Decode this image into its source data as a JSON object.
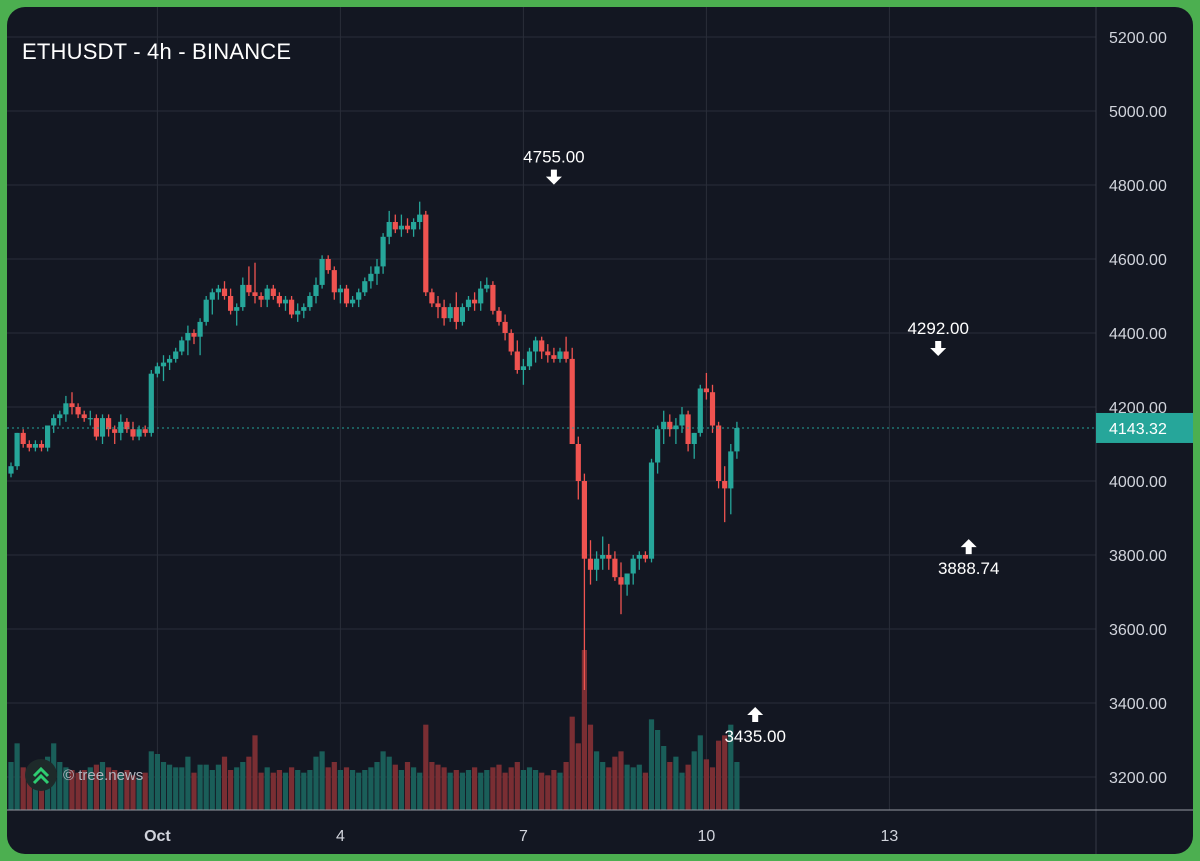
{
  "chart_data": {
    "type": "candlestick",
    "title": "ETHUSDT - 4h - BINANCE",
    "interval": "4h",
    "exchange": "BINANCE",
    "symbol": "ETHUSDT",
    "y_ticks": [
      "5200.00",
      "5000.00",
      "4800.00",
      "4600.00",
      "4400.00",
      "4200.00",
      "4000.00",
      "3800.00",
      "3600.00",
      "3400.00",
      "3200.00"
    ],
    "ylim": [
      3115,
      5245
    ],
    "x_ticks": [
      {
        "label": "Oct",
        "index": 24,
        "bold": true
      },
      {
        "label": "4",
        "index": 54
      },
      {
        "label": "7",
        "index": 84
      },
      {
        "label": "10",
        "index": 114
      },
      {
        "label": "13",
        "index": 144
      }
    ],
    "current_price": "4143.32",
    "annotations": [
      {
        "label": "4755.00",
        "value": 4755,
        "index": 89,
        "position": "above"
      },
      {
        "label": "3435.00",
        "value": 3435,
        "index": 122,
        "position": "below"
      },
      {
        "label": "4292.00",
        "value": 4292,
        "index": 152,
        "position": "above"
      },
      {
        "label": "3888.74",
        "value": 3888.74,
        "index": 157,
        "position": "below"
      }
    ],
    "candles": [
      [
        4020,
        4050,
        4010,
        4040,
        18
      ],
      [
        4040,
        4130,
        4030,
        4130,
        25
      ],
      [
        4130,
        4140,
        4090,
        4100,
        16
      ],
      [
        4100,
        4110,
        4080,
        4090,
        14
      ],
      [
        4090,
        4110,
        4080,
        4100,
        15
      ],
      [
        4100,
        4110,
        4080,
        4090,
        12
      ],
      [
        4090,
        4150,
        4080,
        4150,
        20
      ],
      [
        4150,
        4180,
        4130,
        4170,
        25
      ],
      [
        4170,
        4190,
        4150,
        4180,
        18
      ],
      [
        4180,
        4230,
        4160,
        4210,
        16
      ],
      [
        4210,
        4240,
        4180,
        4200,
        15
      ],
      [
        4200,
        4210,
        4170,
        4180,
        14
      ],
      [
        4180,
        4190,
        4160,
        4170,
        15
      ],
      [
        4170,
        4190,
        4150,
        4170,
        16
      ],
      [
        4170,
        4180,
        4110,
        4120,
        17
      ],
      [
        4120,
        4180,
        4100,
        4170,
        18
      ],
      [
        4170,
        4180,
        4120,
        4140,
        16
      ],
      [
        4140,
        4150,
        4100,
        4130,
        15
      ],
      [
        4130,
        4180,
        4110,
        4160,
        14
      ],
      [
        4160,
        4170,
        4130,
        4140,
        15
      ],
      [
        4140,
        4160,
        4110,
        4120,
        13
      ],
      [
        4120,
        4150,
        4110,
        4140,
        12
      ],
      [
        4140,
        4150,
        4120,
        4130,
        14
      ],
      [
        4130,
        4300,
        4120,
        4290,
        22
      ],
      [
        4290,
        4320,
        4280,
        4310,
        21
      ],
      [
        4310,
        4340,
        4270,
        4320,
        18
      ],
      [
        4320,
        4340,
        4300,
        4330,
        17
      ],
      [
        4330,
        4360,
        4320,
        4350,
        16
      ],
      [
        4350,
        4390,
        4340,
        4380,
        16
      ],
      [
        4380,
        4420,
        4340,
        4400,
        20
      ],
      [
        4400,
        4410,
        4370,
        4390,
        14
      ],
      [
        4390,
        4440,
        4340,
        4430,
        17
      ],
      [
        4430,
        4500,
        4420,
        4490,
        17
      ],
      [
        4490,
        4520,
        4450,
        4510,
        15
      ],
      [
        4510,
        4530,
        4490,
        4520,
        17
      ],
      [
        4520,
        4540,
        4490,
        4500,
        20
      ],
      [
        4500,
        4520,
        4450,
        4460,
        15
      ],
      [
        4460,
        4480,
        4420,
        4470,
        16
      ],
      [
        4470,
        4550,
        4460,
        4530,
        18
      ],
      [
        4530,
        4580,
        4500,
        4510,
        20
      ],
      [
        4510,
        4590,
        4480,
        4500,
        28
      ],
      [
        4500,
        4510,
        4470,
        4490,
        14
      ],
      [
        4490,
        4530,
        4470,
        4520,
        16
      ],
      [
        4520,
        4530,
        4490,
        4500,
        14
      ],
      [
        4500,
        4510,
        4470,
        4480,
        15
      ],
      [
        4480,
        4500,
        4460,
        4490,
        14
      ],
      [
        4490,
        4500,
        4440,
        4450,
        16
      ],
      [
        4450,
        4480,
        4430,
        4460,
        15
      ],
      [
        4460,
        4480,
        4440,
        4470,
        14
      ],
      [
        4470,
        4510,
        4460,
        4500,
        15
      ],
      [
        4500,
        4550,
        4480,
        4530,
        20
      ],
      [
        4530,
        4610,
        4520,
        4600,
        22
      ],
      [
        4600,
        4610,
        4560,
        4570,
        16
      ],
      [
        4570,
        4580,
        4490,
        4510,
        18
      ],
      [
        4510,
        4530,
        4480,
        4520,
        15
      ],
      [
        4520,
        4530,
        4470,
        4480,
        16
      ],
      [
        4480,
        4500,
        4470,
        4490,
        15
      ],
      [
        4490,
        4520,
        4470,
        4510,
        14
      ],
      [
        4510,
        4550,
        4500,
        4540,
        15
      ],
      [
        4540,
        4580,
        4520,
        4560,
        16
      ],
      [
        4560,
        4600,
        4530,
        4580,
        18
      ],
      [
        4580,
        4670,
        4560,
        4660,
        22
      ],
      [
        4660,
        4730,
        4640,
        4700,
        20
      ],
      [
        4700,
        4720,
        4670,
        4680,
        17
      ],
      [
        4680,
        4720,
        4660,
        4690,
        15
      ],
      [
        4690,
        4710,
        4670,
        4680,
        18
      ],
      [
        4680,
        4710,
        4660,
        4700,
        16
      ],
      [
        4700,
        4755,
        4680,
        4720,
        14
      ],
      [
        4720,
        4730,
        4500,
        4510,
        32
      ],
      [
        4510,
        4520,
        4470,
        4480,
        18
      ],
      [
        4480,
        4500,
        4440,
        4470,
        17
      ],
      [
        4470,
        4490,
        4420,
        4440,
        16
      ],
      [
        4440,
        4480,
        4430,
        4470,
        14
      ],
      [
        4470,
        4510,
        4410,
        4430,
        15
      ],
      [
        4430,
        4480,
        4420,
        4470,
        14
      ],
      [
        4470,
        4500,
        4460,
        4490,
        15
      ],
      [
        4490,
        4510,
        4460,
        4480,
        16
      ],
      [
        4480,
        4540,
        4460,
        4520,
        14
      ],
      [
        4520,
        4550,
        4510,
        4530,
        15
      ],
      [
        4530,
        4540,
        4450,
        4460,
        16
      ],
      [
        4460,
        4470,
        4420,
        4430,
        17
      ],
      [
        4430,
        4450,
        4380,
        4400,
        14
      ],
      [
        4400,
        4410,
        4340,
        4350,
        16
      ],
      [
        4350,
        4380,
        4290,
        4300,
        18
      ],
      [
        4300,
        4330,
        4260,
        4310,
        15
      ],
      [
        4310,
        4360,
        4300,
        4350,
        16
      ],
      [
        4350,
        4390,
        4320,
        4380,
        15
      ],
      [
        4380,
        4390,
        4330,
        4350,
        14
      ],
      [
        4350,
        4370,
        4320,
        4340,
        13
      ],
      [
        4340,
        4360,
        4320,
        4330,
        15
      ],
      [
        4330,
        4360,
        4320,
        4350,
        14
      ],
      [
        4350,
        4390,
        4320,
        4330,
        18
      ],
      [
        4330,
        4360,
        4100,
        4100,
        35
      ],
      [
        4100,
        4120,
        3950,
        4000,
        25
      ],
      [
        4000,
        4020,
        3435,
        3790,
        60
      ],
      [
        3790,
        3840,
        3720,
        3760,
        32
      ],
      [
        3760,
        3810,
        3730,
        3790,
        22
      ],
      [
        3790,
        3850,
        3760,
        3800,
        18
      ],
      [
        3800,
        3830,
        3760,
        3790,
        16
      ],
      [
        3790,
        3810,
        3730,
        3740,
        20
      ],
      [
        3740,
        3780,
        3640,
        3720,
        22
      ],
      [
        3720,
        3750,
        3690,
        3750,
        17
      ],
      [
        3750,
        3800,
        3720,
        3790,
        16
      ],
      [
        3790,
        3810,
        3760,
        3800,
        17
      ],
      [
        3800,
        3810,
        3780,
        3790,
        14
      ],
      [
        3790,
        4060,
        3780,
        4050,
        34
      ],
      [
        4050,
        4150,
        4020,
        4140,
        30
      ],
      [
        4140,
        4190,
        4100,
        4160,
        24
      ],
      [
        4160,
        4180,
        4120,
        4140,
        18
      ],
      [
        4140,
        4170,
        4100,
        4150,
        20
      ],
      [
        4150,
        4200,
        4130,
        4180,
        14
      ],
      [
        4180,
        4190,
        4080,
        4100,
        17
      ],
      [
        4100,
        4130,
        4060,
        4130,
        22
      ],
      [
        4130,
        4260,
        4120,
        4250,
        28
      ],
      [
        4250,
        4292,
        4220,
        4240,
        19
      ],
      [
        4240,
        4260,
        4130,
        4150,
        16
      ],
      [
        4150,
        4160,
        3980,
        4000,
        26
      ],
      [
        4000,
        4040,
        3888.74,
        3980,
        28
      ],
      [
        3980,
        4100,
        3910,
        4080,
        32
      ],
      [
        4080,
        4160,
        4060,
        4143.32,
        18
      ]
    ]
  }
}
